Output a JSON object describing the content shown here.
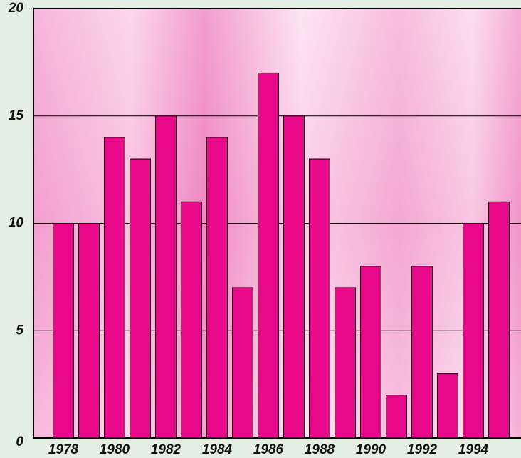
{
  "chart_data": {
    "type": "bar",
    "categories": [
      "1978",
      null,
      "1980",
      null,
      "1982",
      null,
      "1984",
      null,
      "1986",
      null,
      "1988",
      null,
      "1990",
      null,
      "1992",
      null,
      "1994",
      null
    ],
    "values": [
      10,
      10,
      14,
      13,
      15,
      11,
      14,
      7,
      17,
      15,
      13,
      7,
      8,
      2,
      8,
      3,
      10,
      11
    ],
    "color": "#e8088a",
    "ylim": [
      0,
      20
    ],
    "yticks": [
      0,
      5,
      10,
      15,
      20
    ],
    "grid": true
  }
}
